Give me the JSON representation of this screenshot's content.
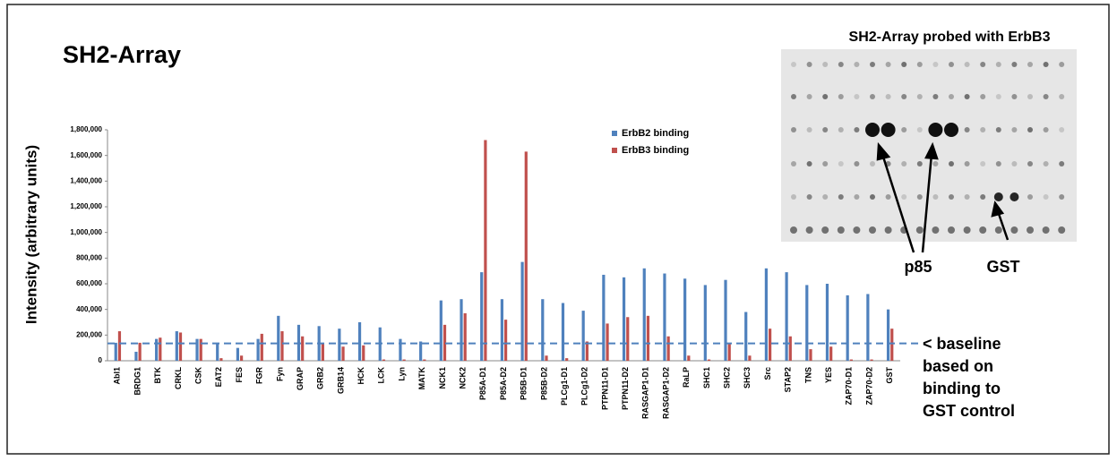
{
  "chart_data": {
    "type": "bar",
    "title": "SH2-Array",
    "y_label": "Intensity (arbitrary units)",
    "categories": [
      "Abl1",
      "BRDG1",
      "BTK",
      "CRKL",
      "CSK",
      "EAT2",
      "FES",
      "FGR",
      "Fyn",
      "GRAP",
      "GRB2",
      "GRB14",
      "HCK",
      "LCK",
      "Lyn",
      "MATK",
      "NCK1",
      "NCK2",
      "P85A-D1",
      "P85A-D2",
      "P85B-D1",
      "P85B-D2",
      "PLCg1-D1",
      "PLCg1-D2",
      "PTPN11-D1",
      "PTPN11-D2",
      "RASGAP1-D1",
      "RASGAP1-D2",
      "RaLP",
      "SHC1",
      "SHC2",
      "SHC3",
      "Src",
      "STAP2",
      "TNS",
      "YES",
      "ZAP70-D1",
      "ZAP70-D2",
      "GST"
    ],
    "series": [
      {
        "name": "ErbB2 binding",
        "color": "#4f81bd",
        "values": [
          140000,
          70000,
          170000,
          230000,
          170000,
          140000,
          100000,
          170000,
          350000,
          280000,
          270000,
          250000,
          300000,
          260000,
          170000,
          150000,
          470000,
          480000,
          690000,
          480000,
          770000,
          480000,
          450000,
          390000,
          670000,
          650000,
          720000,
          680000,
          640000,
          590000,
          630000,
          380000,
          720000,
          690000,
          590000,
          600000,
          510000,
          520000,
          400000
        ]
      },
      {
        "name": "ErbB3 binding",
        "color": "#c0504d",
        "values": [
          230000,
          140000,
          180000,
          220000,
          170000,
          20000,
          40000,
          210000,
          230000,
          190000,
          130000,
          110000,
          120000,
          10000,
          10000,
          10000,
          280000,
          370000,
          1720000,
          320000,
          1630000,
          40000,
          20000,
          150000,
          290000,
          340000,
          350000,
          190000,
          40000,
          10000,
          130000,
          40000,
          250000,
          190000,
          90000,
          110000,
          10000,
          10000,
          250000
        ]
      }
    ],
    "ylim": [
      0,
      1800000
    ],
    "yticks": [
      0,
      {
        "value": 200000,
        "label": "200,000"
      },
      {
        "value": 400000,
        "label": "400,000"
      },
      {
        "value": 600000,
        "label": "600,000"
      },
      {
        "value": 800000,
        "label": "800,000"
      },
      {
        "value": 1000000,
        "label": "1,000,000"
      },
      {
        "value": 1200000,
        "label": "1,200,000"
      },
      {
        "value": 1400000,
        "label": "1,400,000"
      },
      {
        "value": 1600000,
        "label": "1,600,000"
      },
      {
        "value": 1800000,
        "label": "1,800,000"
      }
    ],
    "baseline": 135000,
    "baseline_label": [
      "< baseline",
      "based on",
      "binding to",
      "GST control"
    ],
    "legend": "top-center"
  },
  "inset": {
    "title": "SH2-Array probed with ErbB3",
    "labels": [
      "p85",
      "GST"
    ]
  }
}
